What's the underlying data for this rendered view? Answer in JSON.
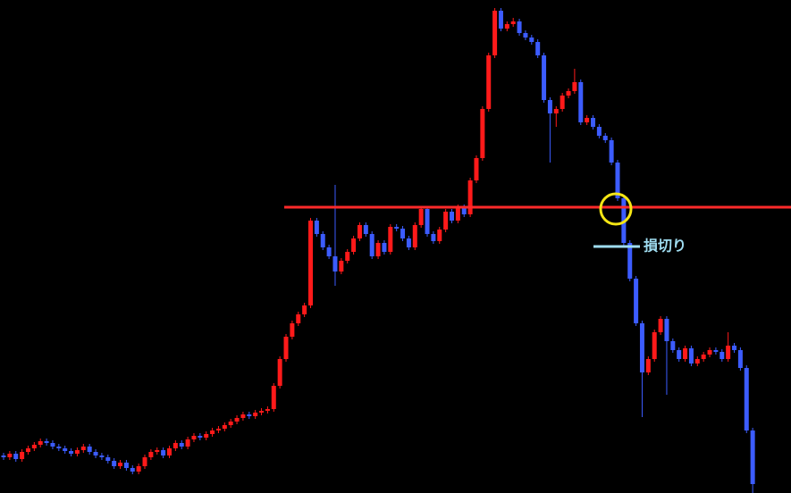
{
  "chart_data": {
    "type": "candlestick",
    "open": [
      42,
      40,
      44,
      38,
      46,
      50,
      54,
      58,
      56,
      52,
      50,
      47,
      44,
      48,
      52,
      46,
      42,
      40,
      36,
      30,
      34,
      28,
      24,
      30,
      40,
      46,
      48,
      42,
      50,
      56,
      52,
      60,
      64,
      62,
      66,
      70,
      72,
      76,
      80,
      84,
      88,
      86,
      90,
      92,
      94,
      120,
      150,
      175,
      190,
      200,
      210,
      305,
      290,
      275,
      265,
      248,
      260,
      270,
      285,
      300,
      290,
      265,
      280,
      270,
      298,
      296,
      285,
      275,
      300,
      318,
      290,
      282,
      295,
      315,
      305,
      320,
      312,
      350,
      375,
      430,
      490,
      540,
      520,
      525,
      528,
      515,
      510,
      505,
      490,
      440,
      425,
      430,
      445,
      450,
      460,
      415,
      420,
      410,
      400,
      395,
      370,
      330,
      280,
      240,
      190,
      135,
      150,
      180,
      195,
      170,
      160,
      150,
      162,
      145,
      150,
      155,
      160,
      158,
      150,
      165,
      160,
      140,
      70
    ],
    "high": [
      45,
      47,
      47,
      49,
      53,
      57,
      61,
      61,
      59,
      55,
      53,
      50,
      51,
      55,
      55,
      49,
      45,
      43,
      39,
      37,
      37,
      31,
      33,
      43,
      49,
      51,
      51,
      53,
      59,
      59,
      63,
      67,
      67,
      69,
      73,
      75,
      79,
      83,
      87,
      91,
      91,
      93,
      95,
      97,
      123,
      153,
      178,
      193,
      203,
      213,
      308,
      308,
      293,
      278,
      345,
      263,
      273,
      288,
      303,
      303,
      293,
      283,
      283,
      301,
      301,
      299,
      288,
      303,
      321,
      321,
      293,
      298,
      318,
      318,
      323,
      323,
      353,
      378,
      433,
      493,
      543,
      543,
      528,
      532,
      531,
      518,
      513,
      508,
      493,
      443,
      433,
      448,
      453,
      475,
      463,
      423,
      423,
      413,
      403,
      398,
      373,
      333,
      283,
      243,
      193,
      153,
      183,
      198,
      198,
      173,
      163,
      165,
      165,
      153,
      158,
      163,
      163,
      161,
      180,
      168,
      163,
      143,
      73
    ],
    "low": [
      37,
      37,
      35,
      35,
      43,
      47,
      51,
      53,
      49,
      47,
      44,
      41,
      41,
      45,
      43,
      39,
      37,
      33,
      27,
      27,
      25,
      21,
      21,
      27,
      37,
      43,
      39,
      39,
      47,
      49,
      49,
      57,
      59,
      59,
      63,
      67,
      69,
      73,
      77,
      81,
      83,
      83,
      87,
      89,
      91,
      117,
      147,
      172,
      187,
      197,
      207,
      287,
      272,
      262,
      232,
      245,
      257,
      267,
      282,
      287,
      262,
      262,
      267,
      267,
      293,
      282,
      272,
      272,
      297,
      287,
      279,
      279,
      292,
      302,
      302,
      309,
      309,
      347,
      372,
      427,
      487,
      517,
      517,
      522,
      512,
      507,
      502,
      487,
      437,
      370,
      410,
      427,
      442,
      447,
      412,
      412,
      407,
      397,
      392,
      367,
      327,
      277,
      237,
      187,
      85,
      132,
      147,
      177,
      110,
      157,
      147,
      147,
      142,
      142,
      147,
      152,
      155,
      147,
      147,
      157,
      137,
      67,
      0
    ],
    "close": [
      40,
      44,
      38,
      46,
      50,
      54,
      58,
      56,
      52,
      50,
      47,
      44,
      48,
      52,
      46,
      42,
      40,
      36,
      30,
      34,
      28,
      24,
      30,
      40,
      46,
      48,
      42,
      50,
      56,
      52,
      60,
      64,
      62,
      66,
      70,
      72,
      76,
      80,
      84,
      88,
      86,
      90,
      92,
      94,
      120,
      150,
      175,
      190,
      200,
      210,
      305,
      290,
      275,
      265,
      248,
      260,
      270,
      285,
      300,
      290,
      265,
      280,
      270,
      298,
      296,
      285,
      275,
      300,
      318,
      290,
      282,
      295,
      315,
      305,
      320,
      312,
      350,
      375,
      430,
      490,
      540,
      520,
      525,
      528,
      515,
      510,
      505,
      490,
      440,
      425,
      430,
      445,
      450,
      460,
      415,
      420,
      410,
      400,
      395,
      370,
      330,
      280,
      240,
      190,
      135,
      150,
      180,
      195,
      170,
      160,
      150,
      162,
      145,
      150,
      155,
      160,
      158,
      150,
      165,
      160,
      140,
      70,
      10
    ],
    "up_color": "#ff1a1a",
    "down_color": "#3c5cff",
    "ylim": [
      0,
      552
    ],
    "hline": {
      "value": 320,
      "color": "#ff2a2a"
    },
    "annotation": {
      "text": "損切り",
      "value": 276,
      "color": "#9fdcf0"
    }
  }
}
